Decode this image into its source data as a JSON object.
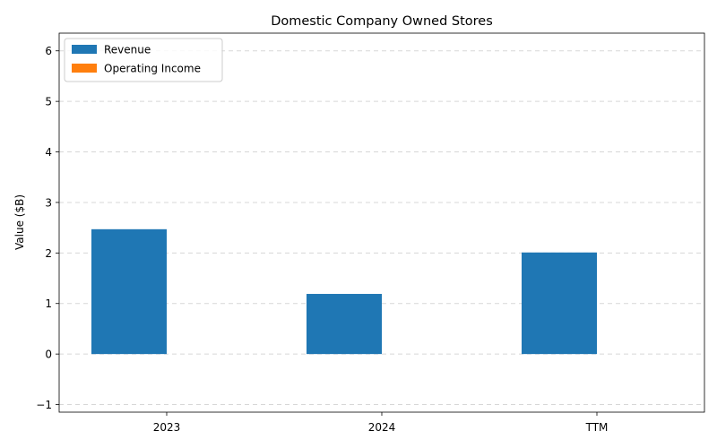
{
  "chart_data": {
    "type": "bar",
    "title": "Domestic Company Owned Stores",
    "xlabel": "",
    "ylabel": "Value ($B)",
    "categories": [
      "2023",
      "2024",
      "TTM"
    ],
    "series": [
      {
        "name": "Revenue",
        "values": [
          2.47,
          1.19,
          2.01
        ],
        "color": "#1f77b4"
      },
      {
        "name": "Operating Income",
        "values": [
          0,
          0,
          0
        ],
        "color": "#ff7f0e"
      }
    ],
    "ylim": [
      -1.15,
      6.35
    ],
    "yticks": [
      -1,
      0,
      1,
      2,
      3,
      4,
      5,
      6
    ],
    "grid": true,
    "legend_position": "top-left"
  }
}
